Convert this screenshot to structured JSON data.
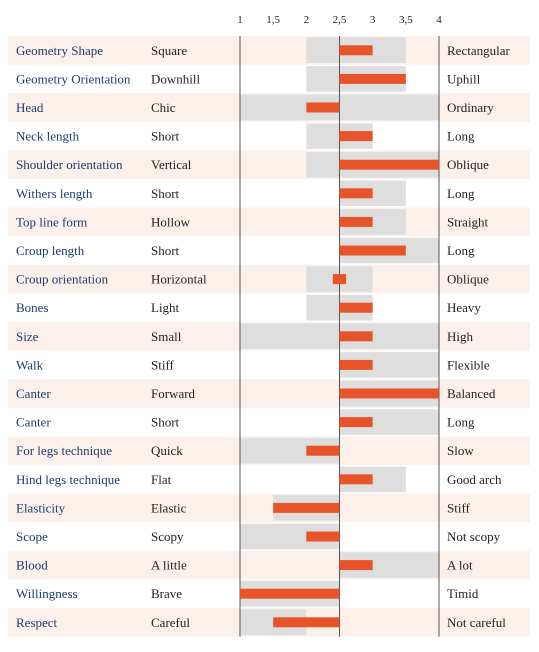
{
  "chart_data": {
    "type": "bar",
    "title": "",
    "xlabel": "",
    "ylabel": "",
    "xlim": [
      1,
      4
    ],
    "ticks": [
      1,
      1.5,
      2,
      2.5,
      3,
      3.5,
      4
    ],
    "tick_labels": [
      "1",
      "1,5",
      "2",
      "2,5",
      "3",
      "3,5",
      "4"
    ],
    "center": 2.5,
    "colors": {
      "bar": "#e8542a",
      "range": "#dedede",
      "stripe": "#fcf0ea",
      "trait_text": "#1c3d6e"
    },
    "rows": [
      {
        "trait": "Geometry Shape",
        "low": "Square",
        "high": "Rectangular",
        "value": 3.0,
        "range": [
          2.0,
          3.5
        ]
      },
      {
        "trait": "Geometry Orientation",
        "low": "Downhill",
        "high": "Uphill",
        "value": 3.5,
        "range": [
          2.0,
          3.5
        ]
      },
      {
        "trait": "Head",
        "low": "Chic",
        "high": "Ordinary",
        "value": 2.0,
        "range": [
          1.0,
          4.0
        ]
      },
      {
        "trait": "Neck length",
        "low": "Short",
        "high": "Long",
        "value": 3.0,
        "range": [
          2.0,
          3.0
        ]
      },
      {
        "trait": "Shoulder orientation",
        "low": "Vertical",
        "high": "Oblique",
        "value": 4.0,
        "range": [
          2.0,
          4.0
        ]
      },
      {
        "trait": "Withers length",
        "low": "Short",
        "high": "Long",
        "value": 3.0,
        "range": [
          2.5,
          3.5
        ]
      },
      {
        "trait": "Top line form",
        "low": "Hollow",
        "high": "Straight",
        "value": 3.0,
        "range": [
          2.5,
          3.5
        ]
      },
      {
        "trait": "Croup length",
        "low": "Short",
        "high": "Long",
        "value": 3.5,
        "range": [
          2.5,
          4.0
        ]
      },
      {
        "trait": "Croup orientation",
        "low": "Horizontal",
        "high": "Oblique",
        "value": 2.6,
        "value_low": 2.4,
        "range": [
          2.0,
          3.0
        ]
      },
      {
        "trait": "Bones",
        "low": "Light",
        "high": "Heavy",
        "value": 3.0,
        "range": [
          2.0,
          3.0
        ]
      },
      {
        "trait": "Size",
        "low": "Small",
        "high": "High",
        "value": 3.0,
        "range": [
          1.0,
          4.0
        ]
      },
      {
        "trait": "Walk",
        "low": "Stiff",
        "high": "Flexible",
        "value": 3.0,
        "range": [
          2.5,
          4.0
        ]
      },
      {
        "trait": "Canter",
        "low": "Forward",
        "high": "Balanced",
        "value": 4.0,
        "range": [
          2.5,
          4.0
        ]
      },
      {
        "trait": "Canter",
        "low": "Short",
        "high": "Long",
        "value": 3.0,
        "range": [
          2.5,
          4.0
        ]
      },
      {
        "trait": "For legs technique",
        "low": "Quick",
        "high": "Slow",
        "value": 2.0,
        "range": [
          1.0,
          2.5
        ]
      },
      {
        "trait": "Hind legs technique",
        "low": "Flat",
        "high": "Good arch",
        "value": 3.0,
        "range": [
          2.5,
          3.5
        ]
      },
      {
        "trait": "Elasticity",
        "low": "Elastic",
        "high": "Stiff",
        "value": 1.5,
        "range": [
          1.5,
          2.5
        ]
      },
      {
        "trait": "Scope",
        "low": "Scopy",
        "high": "Not scopy",
        "value": 2.0,
        "range": [
          1.0,
          2.5
        ]
      },
      {
        "trait": "Blood",
        "low": "A little",
        "high": "A lot",
        "value": 3.0,
        "range": [
          2.5,
          4.0
        ]
      },
      {
        "trait": "Willingness",
        "low": "Brave",
        "high": "Timid",
        "value": 1.0,
        "range": [
          1.0,
          2.5
        ]
      },
      {
        "trait": "Respect",
        "low": "Careful",
        "high": "Not careful",
        "value": 1.5,
        "range": [
          1.0,
          2.0
        ]
      }
    ]
  }
}
